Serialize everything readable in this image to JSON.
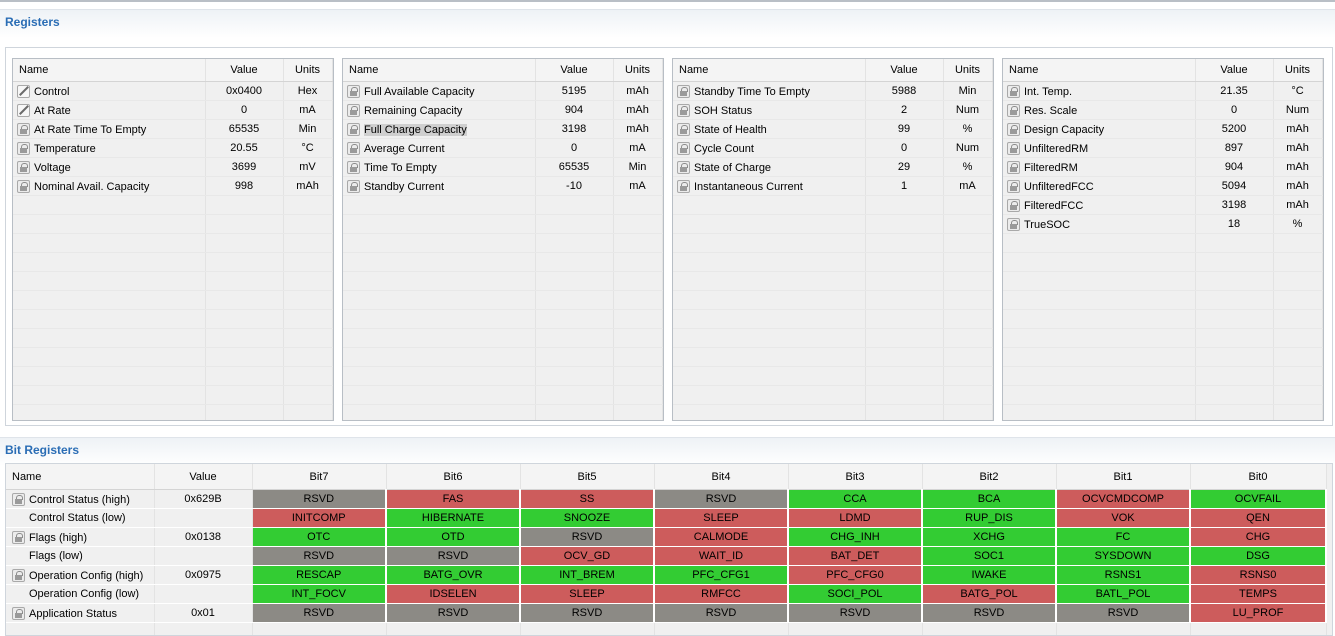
{
  "registers_section": {
    "title": "Registers"
  },
  "bit_registers_section": {
    "title": "Bit Registers"
  },
  "columns": {
    "name": "Name",
    "value": "Value",
    "units": "Units"
  },
  "panels": [
    {
      "rows": [
        {
          "icon": "pencil-icon",
          "name": "Control",
          "value": "0x0400",
          "units": "Hex"
        },
        {
          "icon": "pencil-icon",
          "name": "At Rate",
          "value": "0",
          "units": "mA"
        },
        {
          "icon": "lock-icon",
          "name": "At Rate Time To Empty",
          "value": "65535",
          "units": "Min"
        },
        {
          "icon": "lock-icon",
          "name": "Temperature",
          "value": "20.55",
          "units": "°C"
        },
        {
          "icon": "lock-icon",
          "name": "Voltage",
          "value": "3699",
          "units": "mV"
        },
        {
          "icon": "lock-icon",
          "name": "Nominal Avail. Capacity",
          "value": "998",
          "units": "mAh"
        }
      ]
    },
    {
      "rows": [
        {
          "icon": "lock-icon",
          "name": "Full Available Capacity",
          "value": "5195",
          "units": "mAh"
        },
        {
          "icon": "lock-icon",
          "name": "Remaining Capacity",
          "value": "904",
          "units": "mAh"
        },
        {
          "icon": "lock-icon",
          "name": "Full Charge Capacity",
          "value": "3198",
          "units": "mAh",
          "selected": true
        },
        {
          "icon": "lock-icon",
          "name": "Average Current",
          "value": "0",
          "units": "mA"
        },
        {
          "icon": "lock-icon",
          "name": "Time To Empty",
          "value": "65535",
          "units": "Min"
        },
        {
          "icon": "lock-icon",
          "name": "Standby Current",
          "value": "-10",
          "units": "mA"
        }
      ]
    },
    {
      "rows": [
        {
          "icon": "lock-icon",
          "name": "Standby Time To Empty",
          "value": "5988",
          "units": "Min"
        },
        {
          "icon": "lock-icon",
          "name": "SOH Status",
          "value": "2",
          "units": "Num"
        },
        {
          "icon": "lock-icon",
          "name": "State of Health",
          "value": "99",
          "units": "%"
        },
        {
          "icon": "lock-icon",
          "name": "Cycle Count",
          "value": "0",
          "units": "Num"
        },
        {
          "icon": "lock-icon",
          "name": "State of Charge",
          "value": "29",
          "units": "%"
        },
        {
          "icon": "lock-icon",
          "name": "Instantaneous Current",
          "value": "1",
          "units": "mA"
        }
      ]
    },
    {
      "rows": [
        {
          "icon": "lock-icon",
          "name": "Int. Temp.",
          "value": "21.35",
          "units": "°C"
        },
        {
          "icon": "lock-icon",
          "name": "Res. Scale",
          "value": "0",
          "units": "Num"
        },
        {
          "icon": "lock-icon",
          "name": "Design Capacity",
          "value": "5200",
          "units": "mAh"
        },
        {
          "icon": "lock-icon",
          "name": "UnfilteredRM",
          "value": "897",
          "units": "mAh"
        },
        {
          "icon": "lock-icon",
          "name": "FilteredRM",
          "value": "904",
          "units": "mAh"
        },
        {
          "icon": "lock-icon",
          "name": "UnfilteredFCC",
          "value": "5094",
          "units": "mAh"
        },
        {
          "icon": "lock-icon",
          "name": "FilteredFCC",
          "value": "3198",
          "units": "mAh"
        },
        {
          "icon": "lock-icon",
          "name": "TrueSOC",
          "value": "18",
          "units": "%"
        }
      ]
    }
  ],
  "bit_columns": [
    "Bit7",
    "Bit6",
    "Bit5",
    "Bit4",
    "Bit3",
    "Bit2",
    "Bit1",
    "Bit0"
  ],
  "bit_colors": {
    "set": "#33cc33",
    "clear": "#cd5c5c",
    "reserved": "#8c8a85"
  },
  "bit_rows": [
    {
      "name": "Control Status (high)",
      "value": "0x629B",
      "icon": true,
      "bits": [
        [
          "RSVD",
          "gray"
        ],
        [
          "FAS",
          "red"
        ],
        [
          "SS",
          "red"
        ],
        [
          "RSVD",
          "gray"
        ],
        [
          "CCA",
          "green"
        ],
        [
          "BCA",
          "green"
        ],
        [
          "OCVCMDCOMP",
          "red"
        ],
        [
          "OCVFAIL",
          "green"
        ]
      ]
    },
    {
      "name": "Control Status (low)",
      "value": "",
      "icon": false,
      "bits": [
        [
          "INITCOMP",
          "red"
        ],
        [
          "HIBERNATE",
          "green"
        ],
        [
          "SNOOZE",
          "green"
        ],
        [
          "SLEEP",
          "red"
        ],
        [
          "LDMD",
          "red"
        ],
        [
          "RUP_DIS",
          "green"
        ],
        [
          "VOK",
          "red"
        ],
        [
          "QEN",
          "red"
        ]
      ]
    },
    {
      "name": "Flags (high)",
      "value": "0x0138",
      "icon": true,
      "bits": [
        [
          "OTC",
          "green"
        ],
        [
          "OTD",
          "green"
        ],
        [
          "RSVD",
          "gray"
        ],
        [
          "CALMODE",
          "red"
        ],
        [
          "CHG_INH",
          "green"
        ],
        [
          "XCHG",
          "green"
        ],
        [
          "FC",
          "green"
        ],
        [
          "CHG",
          "red"
        ]
      ]
    },
    {
      "name": "Flags (low)",
      "value": "",
      "icon": false,
      "bits": [
        [
          "RSVD",
          "gray"
        ],
        [
          "RSVD",
          "gray"
        ],
        [
          "OCV_GD",
          "red"
        ],
        [
          "WAIT_ID",
          "red"
        ],
        [
          "BAT_DET",
          "red"
        ],
        [
          "SOC1",
          "green"
        ],
        [
          "SYSDOWN",
          "green"
        ],
        [
          "DSG",
          "green"
        ]
      ]
    },
    {
      "name": "Operation Config (high)",
      "value": "0x0975",
      "icon": true,
      "bits": [
        [
          "RESCAP",
          "green"
        ],
        [
          "BATG_OVR",
          "green"
        ],
        [
          "INT_BREM",
          "green"
        ],
        [
          "PFC_CFG1",
          "green"
        ],
        [
          "PFC_CFG0",
          "red"
        ],
        [
          "IWAKE",
          "green"
        ],
        [
          "RSNS1",
          "green"
        ],
        [
          "RSNS0",
          "red"
        ]
      ]
    },
    {
      "name": "Operation Config (low)",
      "value": "",
      "icon": false,
      "bits": [
        [
          "INT_FOCV",
          "green"
        ],
        [
          "IDSELEN",
          "red"
        ],
        [
          "SLEEP",
          "red"
        ],
        [
          "RMFCC",
          "red"
        ],
        [
          "SOCI_POL",
          "green"
        ],
        [
          "BATG_POL",
          "red"
        ],
        [
          "BATL_POL",
          "green"
        ],
        [
          "TEMPS",
          "red"
        ]
      ]
    },
    {
      "name": "Application Status",
      "value": "0x01",
      "icon": true,
      "bits": [
        [
          "RSVD",
          "gray"
        ],
        [
          "RSVD",
          "gray"
        ],
        [
          "RSVD",
          "gray"
        ],
        [
          "RSVD",
          "gray"
        ],
        [
          "RSVD",
          "gray"
        ],
        [
          "RSVD",
          "gray"
        ],
        [
          "RSVD",
          "gray"
        ],
        [
          "LU_PROF",
          "red"
        ]
      ]
    }
  ]
}
